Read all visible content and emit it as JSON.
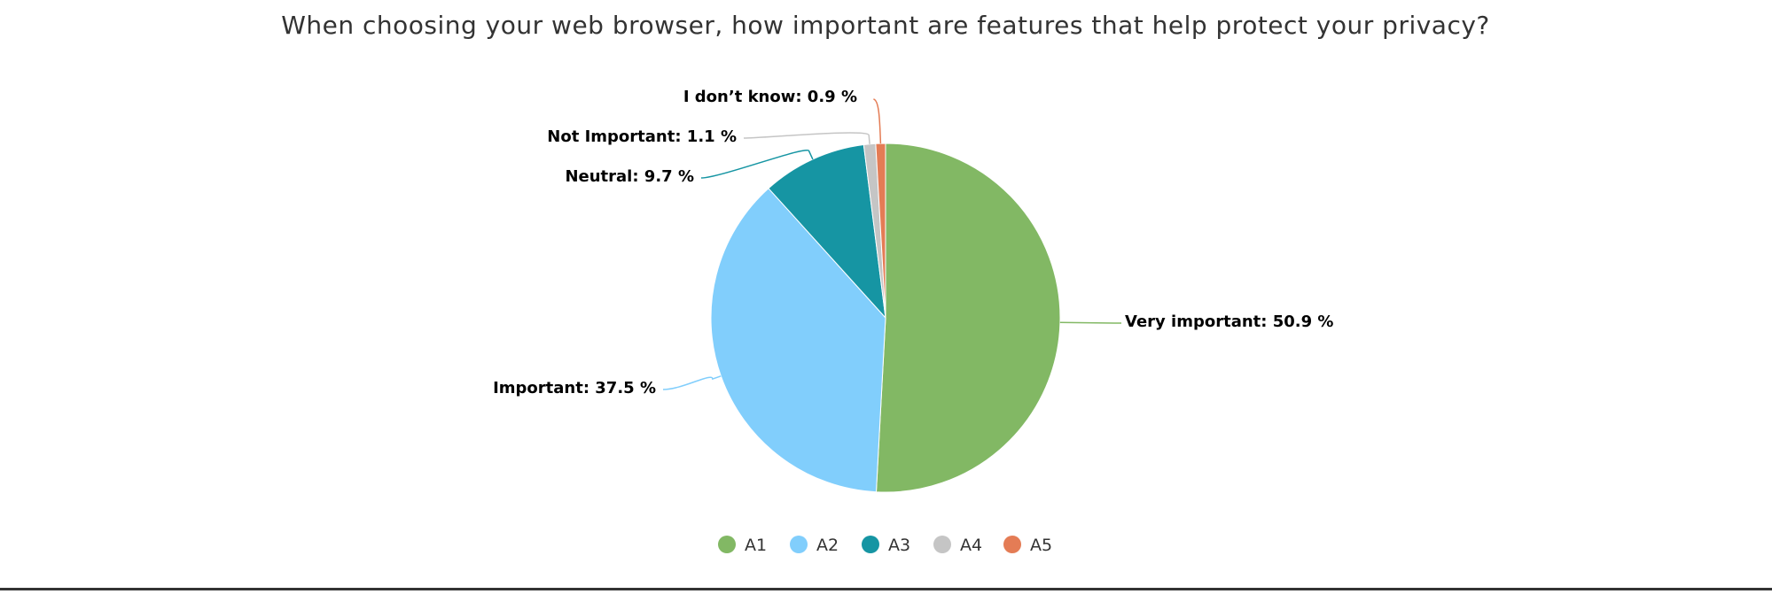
{
  "chart_data": {
    "type": "pie",
    "title": "When choosing your web browser, how important are features that help protect your privacy?",
    "slices": [
      {
        "legend": "A1",
        "label": "Very important",
        "value": 50.9,
        "display": "50.9 %",
        "color": "#82b864"
      },
      {
        "legend": "A2",
        "label": "Important",
        "value": 37.5,
        "display": "37.5 %",
        "color": "#81cefc"
      },
      {
        "legend": "A3",
        "label": "Neutral",
        "value": 9.7,
        "display": "9.7 %",
        "color": "#1695a3"
      },
      {
        "legend": "A4",
        "label": "Not Important",
        "value": 1.1,
        "display": "1.1 %",
        "color": "#c5c5c5"
      },
      {
        "legend": "A5",
        "label": "I don’t know",
        "value": 0.9,
        "display": "0.9 %",
        "color": "#e47c55"
      }
    ],
    "legend_position": "bottom-center"
  }
}
